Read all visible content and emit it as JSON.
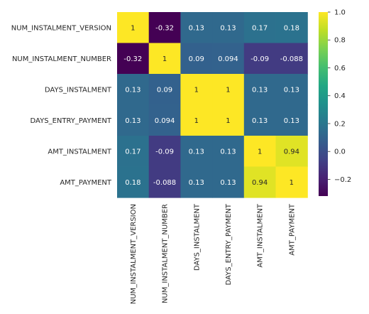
{
  "chart_data": {
    "type": "heatmap",
    "title": "",
    "xlabel": "",
    "ylabel": "",
    "colormap": "viridis",
    "rows": [
      "NUM_INSTALMENT_VERSION",
      "NUM_INSTALMENT_NUMBER",
      "DAYS_INSTALMENT",
      "DAYS_ENTRY_PAYMENT",
      "AMT_INSTALMENT",
      "AMT_PAYMENT"
    ],
    "columns": [
      "NUM_INSTALMENT_VERSION",
      "NUM_INSTALMENT_NUMBER",
      "DAYS_INSTALMENT",
      "DAYS_ENTRY_PAYMENT",
      "AMT_INSTALMENT",
      "AMT_PAYMENT"
    ],
    "values": [
      [
        1,
        -0.32,
        0.13,
        0.13,
        0.17,
        0.18
      ],
      [
        -0.32,
        1,
        0.09,
        0.094,
        -0.09,
        -0.088
      ],
      [
        0.13,
        0.09,
        1,
        1,
        0.13,
        0.13
      ],
      [
        0.13,
        0.094,
        1,
        1,
        0.13,
        0.13
      ],
      [
        0.17,
        -0.09,
        0.13,
        0.13,
        1,
        0.94
      ],
      [
        0.18,
        -0.088,
        0.13,
        0.13,
        0.94,
        1
      ]
    ],
    "labels": [
      [
        "1",
        "-0.32",
        "0.13",
        "0.13",
        "0.17",
        "0.18"
      ],
      [
        "-0.32",
        "1",
        "0.09",
        "0.094",
        "-0.09",
        "-0.088"
      ],
      [
        "0.13",
        "0.09",
        "1",
        "1",
        "0.13",
        "0.13"
      ],
      [
        "0.13",
        "0.094",
        "1",
        "1",
        "0.13",
        "0.13"
      ],
      [
        "0.17",
        "-0.09",
        "0.13",
        "0.13",
        "1",
        "0.94"
      ],
      [
        "0.18",
        "-0.088",
        "0.13",
        "0.13",
        "0.94",
        "1"
      ]
    ],
    "vmin": -0.32,
    "vmax": 1,
    "colorbar": {
      "ticks": [
        -0.2,
        0.0,
        0.2,
        0.4,
        0.6,
        0.8,
        1.0
      ],
      "tick_labels": [
        "−0.2",
        "0.0",
        "0.2",
        "0.4",
        "0.6",
        "0.8",
        "1.0"
      ]
    }
  }
}
